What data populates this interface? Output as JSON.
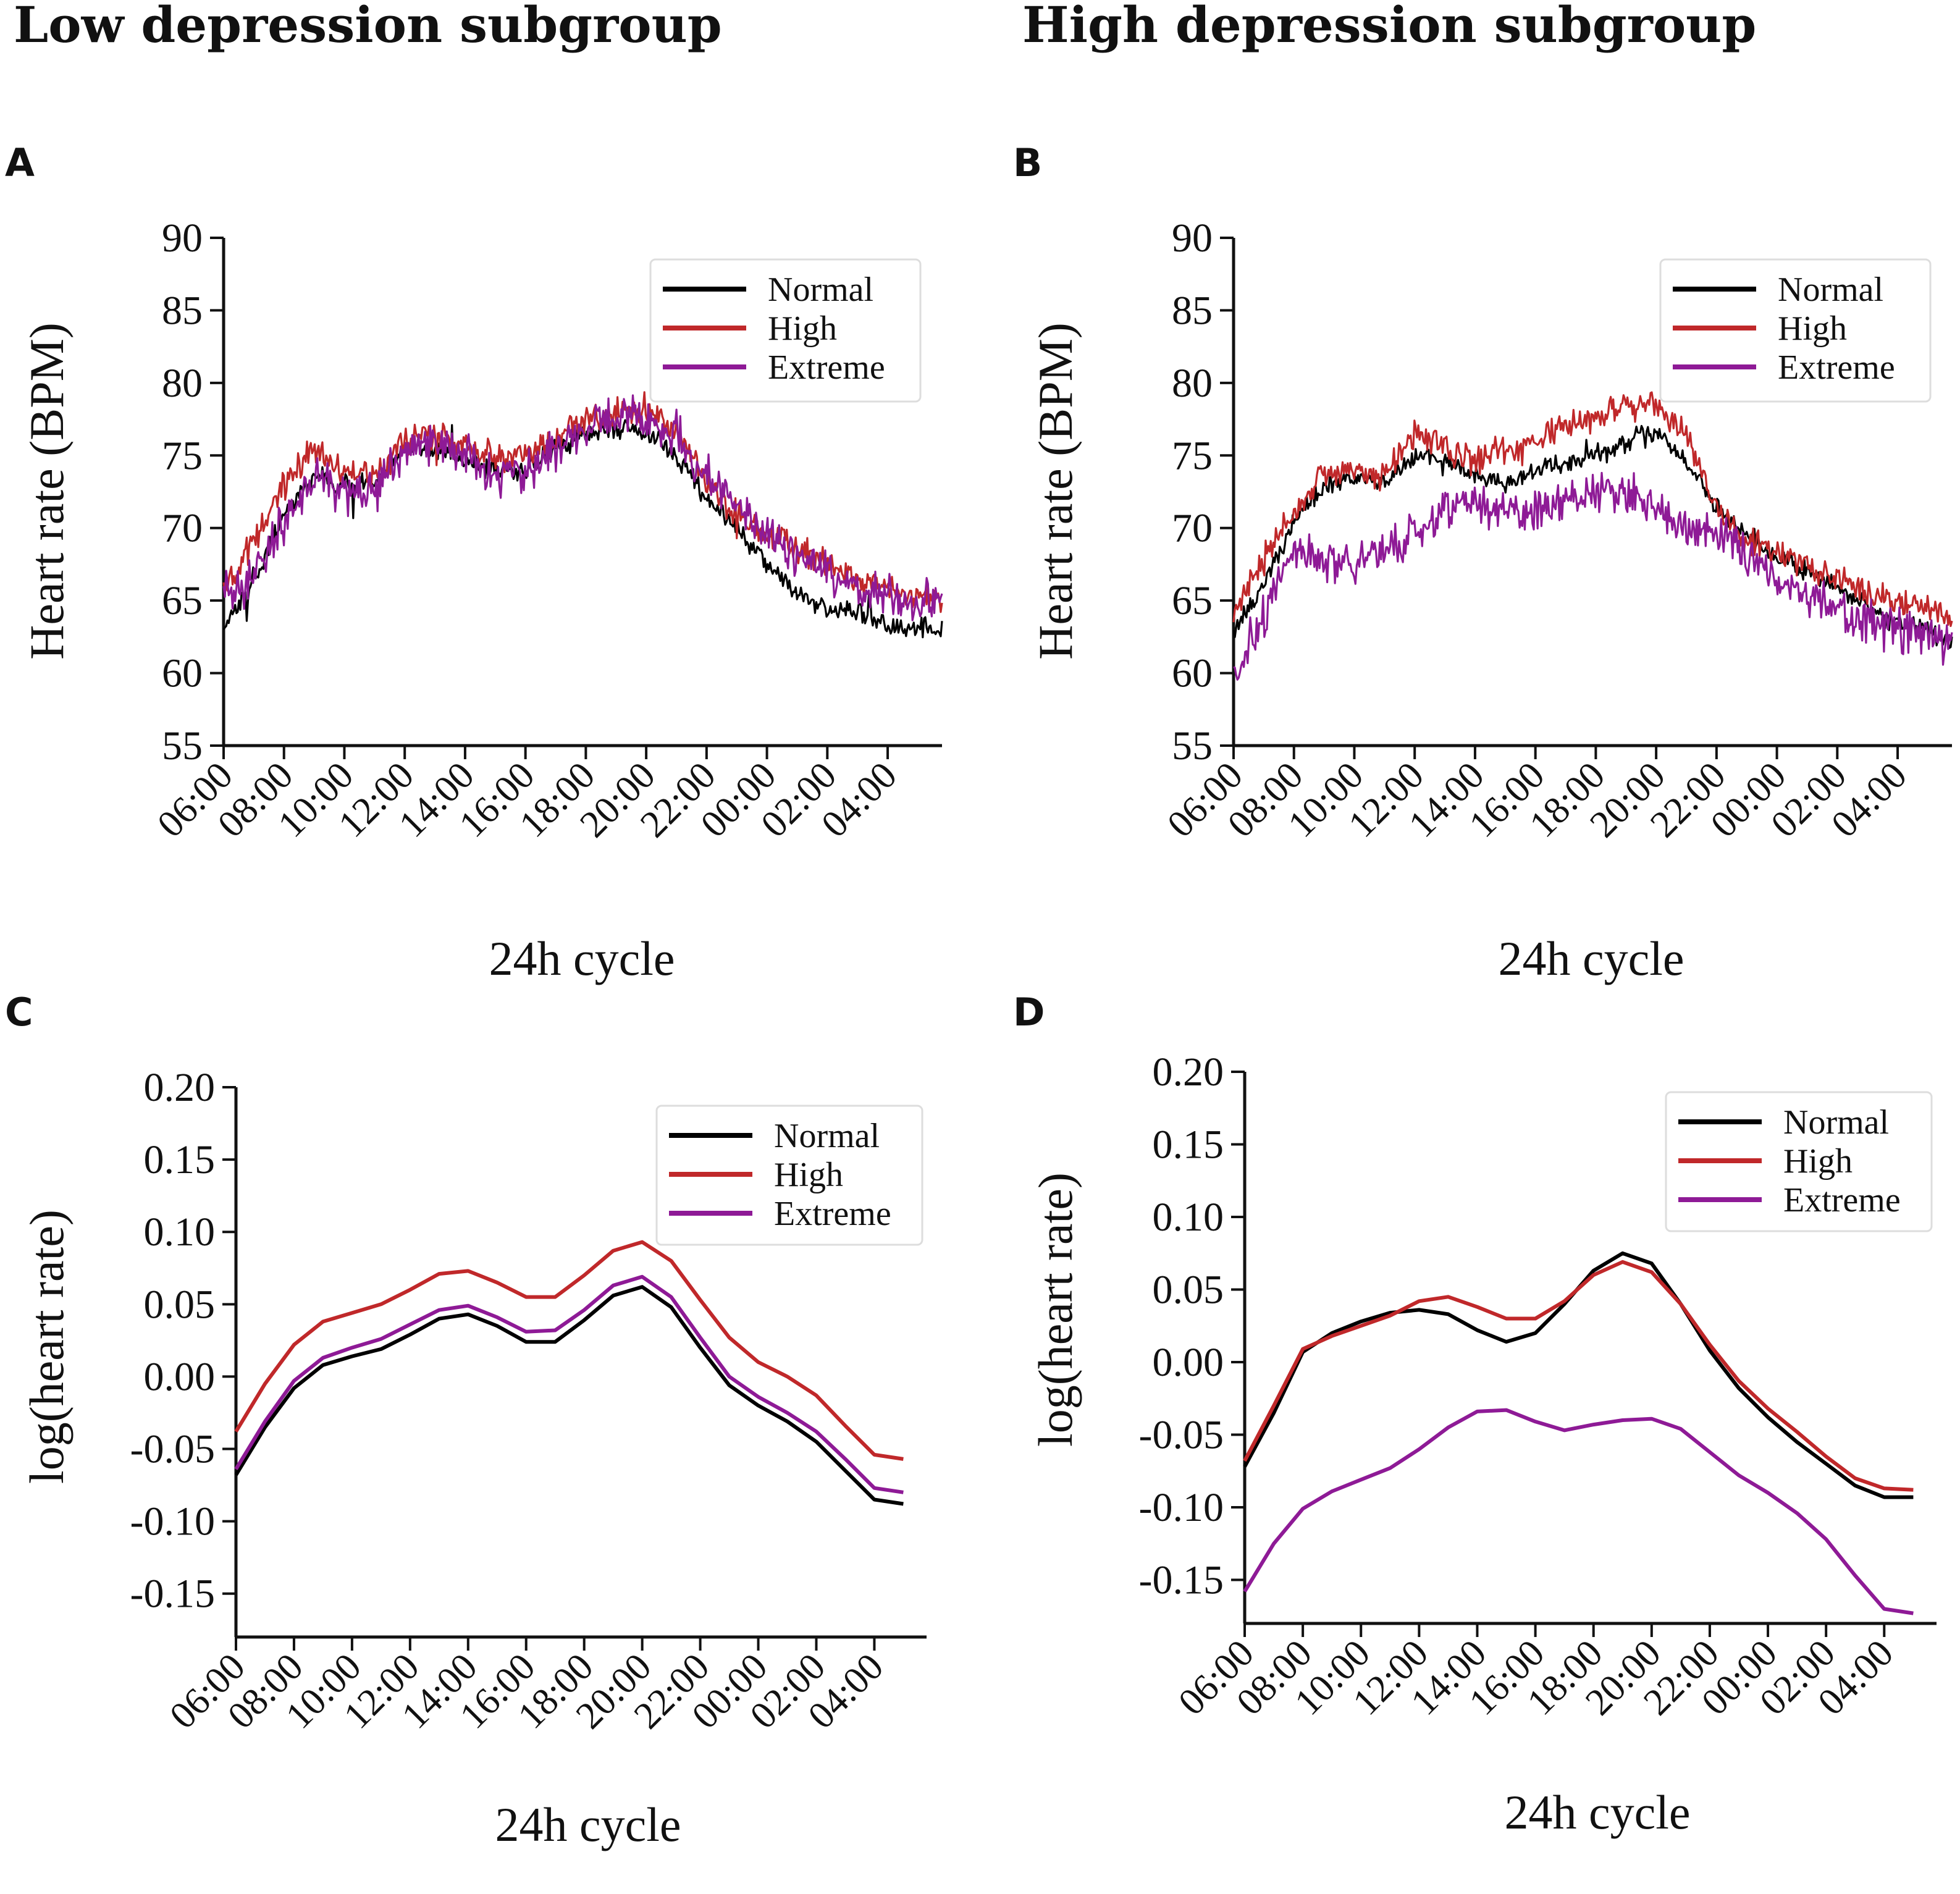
{
  "figure": {
    "left_title": "Low depression subgroup",
    "right_title": "High depression subgroup"
  },
  "chart_data": [
    {
      "panel": "A",
      "type": "line",
      "noisy": true,
      "xlabel": "24h cycle",
      "ylabel": "Heart rate (BPM)",
      "ylim": [
        55,
        90
      ],
      "yticks": [
        55,
        60,
        65,
        70,
        75,
        80,
        85,
        90
      ],
      "x_hours": [
        6,
        7,
        8,
        9,
        10,
        11,
        12,
        13,
        14,
        15,
        16,
        17,
        18,
        19,
        20,
        21,
        22,
        23,
        24,
        25,
        26,
        27,
        28,
        29,
        29.8
      ],
      "xticks": [
        "06:00",
        "08:00",
        "10:00",
        "12:00",
        "14:00",
        "16:00",
        "18:00",
        "20:00",
        "22:00",
        "00:00",
        "02:00",
        "04:00"
      ],
      "legend": [
        "Normal",
        "High",
        "Extreme"
      ],
      "series": [
        {
          "name": "Normal",
          "color": "#000000",
          "values": [
            63,
            66.5,
            71,
            73.5,
            73,
            73,
            75.5,
            75.5,
            74.5,
            74,
            74,
            75.5,
            76.5,
            77,
            76.5,
            75,
            72,
            70,
            67.5,
            65.5,
            64.5,
            64,
            63.5,
            63,
            63
          ]
        },
        {
          "name": "High",
          "color": "#c0282a",
          "values": [
            65.5,
            69,
            73,
            75.5,
            74,
            73.5,
            76,
            76.5,
            75.5,
            75,
            75,
            76,
            77.5,
            78,
            78,
            77,
            73,
            71,
            69.5,
            68.5,
            67.5,
            66.5,
            66,
            65,
            65
          ]
        },
        {
          "name": "Extreme",
          "color": "#8e1a96",
          "values": [
            65.5,
            66.5,
            70.5,
            73.5,
            72.5,
            72.5,
            75.5,
            76,
            75,
            73.5,
            74,
            75.5,
            77,
            77.5,
            77.5,
            76.5,
            73.5,
            71.5,
            69.5,
            68,
            67,
            66,
            65.5,
            64.5,
            65
          ]
        }
      ]
    },
    {
      "panel": "B",
      "type": "line",
      "noisy": true,
      "xlabel": "24h cycle",
      "ylabel": "Heart rate (BPM)",
      "ylim": [
        55,
        90
      ],
      "yticks": [
        55,
        60,
        65,
        70,
        75,
        80,
        85,
        90
      ],
      "x_hours": [
        6,
        7,
        8,
        9,
        10,
        11,
        12,
        13,
        14,
        15,
        16,
        17,
        18,
        19,
        20,
        21,
        22,
        23,
        24,
        25,
        26,
        27,
        28,
        29,
        29.8
      ],
      "xticks": [
        "06:00",
        "08:00",
        "10:00",
        "12:00",
        "14:00",
        "16:00",
        "18:00",
        "20:00",
        "22:00",
        "00:00",
        "02:00",
        "04:00"
      ],
      "legend": [
        "Normal",
        "High",
        "Extreme"
      ],
      "series": [
        {
          "name": "Normal",
          "color": "#000000",
          "values": [
            63,
            66,
            70.5,
            73,
            73.5,
            73,
            75,
            74.5,
            73.5,
            73,
            74,
            74.5,
            75,
            76,
            76.5,
            74.5,
            71.5,
            69.5,
            68,
            67,
            66,
            64.5,
            63.5,
            63,
            62
          ]
        },
        {
          "name": "High",
          "color": "#c0282a",
          "values": [
            64,
            68,
            71.5,
            73.5,
            74,
            73.5,
            76.5,
            75.5,
            74.5,
            75.5,
            76,
            77,
            77.5,
            78.5,
            78.5,
            76.5,
            71.5,
            69,
            68.5,
            67.5,
            66.5,
            65.5,
            65,
            64.5,
            64
          ]
        },
        {
          "name": "Extreme",
          "color": "#8e1a96",
          "values": [
            60,
            64,
            69,
            67.5,
            67.5,
            68.5,
            69.5,
            71.5,
            72,
            71,
            71,
            72,
            72.5,
            72.5,
            71.5,
            70,
            70,
            68,
            66.5,
            65.5,
            64.5,
            63.5,
            63,
            62.5,
            61.5
          ]
        }
      ]
    },
    {
      "panel": "C",
      "type": "line",
      "noisy": false,
      "xlabel": "24h cycle",
      "ylabel": "log(heart rate)",
      "ylim": [
        -0.18,
        0.2
      ],
      "yticks": [
        -0.15,
        -0.1,
        -0.05,
        0.0,
        0.05,
        0.1,
        0.15,
        0.2
      ],
      "ytick_labels": [
        "-0.15",
        "-0.10",
        "-0.05",
        "0.00",
        "0.05",
        "0.10",
        "0.15",
        "0.20"
      ],
      "x_hours": [
        6,
        7,
        8,
        9,
        10,
        11,
        12,
        13,
        14,
        15,
        16,
        17,
        18,
        19,
        20,
        21,
        22,
        23,
        24,
        25,
        26,
        27,
        28,
        29
      ],
      "xticks": [
        "06:00",
        "08:00",
        "10:00",
        "12:00",
        "14:00",
        "16:00",
        "18:00",
        "20:00",
        "22:00",
        "00:00",
        "02:00",
        "04:00"
      ],
      "legend": [
        "Normal",
        "High",
        "Extreme"
      ],
      "series": [
        {
          "name": "Normal",
          "color": "#000000",
          "values": [
            -0.068,
            -0.035,
            -0.008,
            0.008,
            0.014,
            0.019,
            0.029,
            0.04,
            0.043,
            0.035,
            0.024,
            0.024,
            0.039,
            0.056,
            0.062,
            0.048,
            0.02,
            -0.006,
            -0.02,
            -0.031,
            -0.045,
            -0.065,
            -0.085,
            -0.088
          ]
        },
        {
          "name": "High",
          "color": "#c0282a",
          "values": [
            -0.038,
            -0.005,
            0.022,
            0.038,
            0.044,
            0.05,
            0.06,
            0.071,
            0.073,
            0.065,
            0.055,
            0.055,
            0.07,
            0.087,
            0.093,
            0.08,
            0.053,
            0.027,
            0.01,
            0.0,
            -0.013,
            -0.034,
            -0.054,
            -0.057
          ]
        },
        {
          "name": "Extreme",
          "color": "#8e1a96",
          "values": [
            -0.064,
            -0.031,
            -0.003,
            0.013,
            0.02,
            0.026,
            0.036,
            0.046,
            0.049,
            0.041,
            0.031,
            0.032,
            0.046,
            0.063,
            0.069,
            0.055,
            0.027,
            0.0,
            -0.014,
            -0.025,
            -0.038,
            -0.057,
            -0.077,
            -0.08
          ]
        }
      ]
    },
    {
      "panel": "D",
      "type": "line",
      "noisy": false,
      "xlabel": "24h cycle",
      "ylabel": "log(heart rate)",
      "ylim": [
        -0.18,
        0.2
      ],
      "yticks": [
        -0.15,
        -0.1,
        -0.05,
        0.0,
        0.05,
        0.1,
        0.15,
        0.2
      ],
      "ytick_labels": [
        "-0.15",
        "-0.10",
        "-0.05",
        "0.00",
        "0.05",
        "0.10",
        "0.15",
        "0.20"
      ],
      "x_hours": [
        6,
        7,
        8,
        9,
        10,
        11,
        12,
        13,
        14,
        15,
        16,
        17,
        18,
        19,
        20,
        21,
        22,
        23,
        24,
        25,
        26,
        27,
        28,
        29
      ],
      "xticks": [
        "06:00",
        "08:00",
        "10:00",
        "12:00",
        "14:00",
        "16:00",
        "18:00",
        "20:00",
        "22:00",
        "00:00",
        "02:00",
        "04:00"
      ],
      "legend": [
        "Normal",
        "High",
        "Extreme"
      ],
      "series": [
        {
          "name": "Normal",
          "color": "#000000",
          "values": [
            -0.072,
            -0.035,
            0.007,
            0.02,
            0.028,
            0.034,
            0.036,
            0.033,
            0.022,
            0.014,
            0.02,
            0.04,
            0.063,
            0.075,
            0.068,
            0.04,
            0.008,
            -0.018,
            -0.038,
            -0.055,
            -0.07,
            -0.085,
            -0.093,
            -0.093
          ]
        },
        {
          "name": "High",
          "color": "#c0282a",
          "values": [
            -0.068,
            -0.03,
            0.009,
            0.018,
            0.025,
            0.032,
            0.042,
            0.045,
            0.038,
            0.03,
            0.03,
            0.042,
            0.06,
            0.069,
            0.062,
            0.04,
            0.012,
            -0.013,
            -0.032,
            -0.048,
            -0.065,
            -0.08,
            -0.087,
            -0.088
          ]
        },
        {
          "name": "Extreme",
          "color": "#8e1a96",
          "values": [
            -0.158,
            -0.125,
            -0.101,
            -0.089,
            -0.081,
            -0.073,
            -0.06,
            -0.045,
            -0.034,
            -0.033,
            -0.041,
            -0.047,
            -0.043,
            -0.04,
            -0.039,
            -0.046,
            -0.062,
            -0.078,
            -0.09,
            -0.104,
            -0.122,
            -0.147,
            -0.17,
            -0.173
          ]
        }
      ]
    }
  ]
}
